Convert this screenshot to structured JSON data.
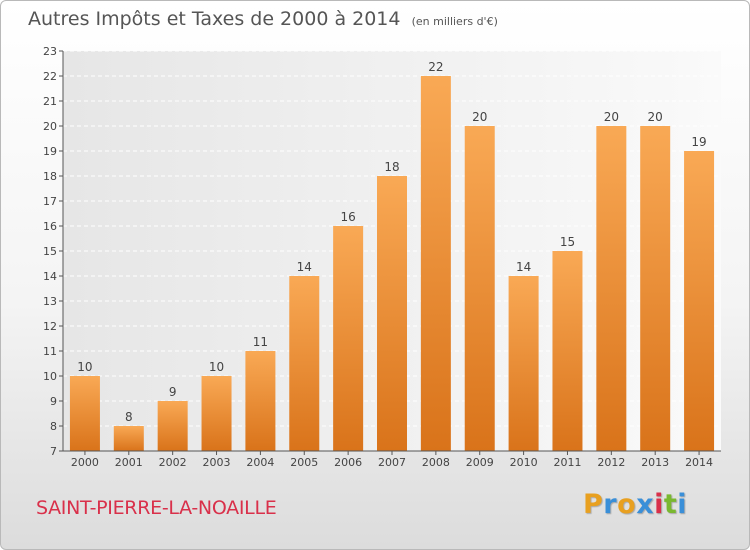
{
  "title": "Autres Impôts et Taxes de 2000 à 2014",
  "unit_note": "(en milliers d'€)",
  "commune": "SAINT-PIERRE-LA-NOAILLE",
  "logo": {
    "letters": [
      "P",
      "r",
      "o",
      "x",
      "i",
      "t",
      "i"
    ],
    "colors": [
      "#e8a020",
      "#3a8fd8",
      "#e8a020",
      "#3a8fd8",
      "#d9304a",
      "#7ab830",
      "#3a8fd8"
    ]
  },
  "chart_data": {
    "type": "bar",
    "title": "Autres Impôts et Taxes de 2000 à 2014",
    "categories": [
      "2000",
      "2001",
      "2002",
      "2003",
      "2004",
      "2005",
      "2006",
      "2007",
      "2008",
      "2009",
      "2010",
      "2011",
      "2012",
      "2013",
      "2014"
    ],
    "values": [
      10,
      8,
      9,
      10,
      11,
      14,
      16,
      18,
      22,
      20,
      14,
      15,
      20,
      20,
      19
    ],
    "ylim": [
      7,
      23
    ],
    "yticks": [
      7,
      8,
      9,
      10,
      11,
      12,
      13,
      14,
      15,
      16,
      17,
      18,
      19,
      20,
      21,
      22,
      23
    ],
    "grid": true,
    "bar_color": "#f0922e"
  }
}
